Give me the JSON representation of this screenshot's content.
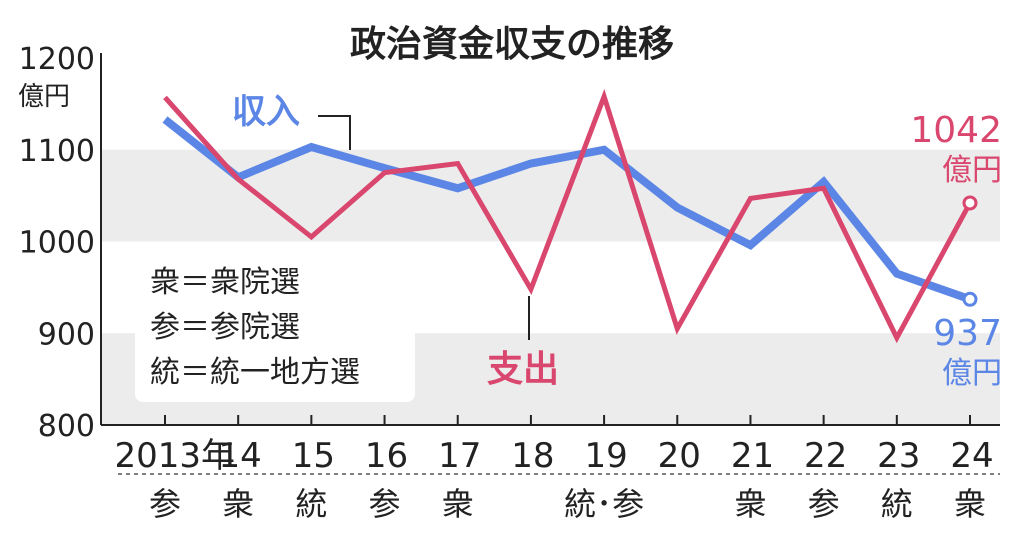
{
  "chart_data": {
    "type": "line",
    "title": "政治資金収支の推移",
    "y_unit": "億円",
    "ylim": [
      800,
      1200
    ],
    "yticks": [
      1200,
      1100,
      1000,
      900,
      800
    ],
    "categories": [
      "2013年",
      "14",
      "15",
      "16",
      "17",
      "18",
      "19",
      "20",
      "21",
      "22",
      "23",
      "24"
    ],
    "elections": [
      "参",
      "衆",
      "統",
      "参",
      "衆",
      "",
      "統･参",
      "",
      "衆",
      "参",
      "統",
      "衆"
    ],
    "series": [
      {
        "name": "収入",
        "color": "#5b86e6",
        "values": [
          1133,
          1070,
          1103,
          1080,
          1058,
          1085,
          1100,
          1037,
          996,
          1065,
          965,
          937
        ]
      },
      {
        "name": "支出",
        "color": "#d9466e",
        "values": [
          1157,
          1068,
          1005,
          1075,
          1085,
          948,
          1158,
          905,
          1047,
          1058,
          895,
          1042
        ]
      }
    ],
    "end_labels": {
      "income": {
        "value": "937",
        "unit": "億円"
      },
      "expense": {
        "value": "1042",
        "unit": "億円"
      }
    },
    "legend": [
      "衆＝衆院選",
      "参＝参院選",
      "統＝統一地方選"
    ],
    "grid": "alternating bands"
  }
}
